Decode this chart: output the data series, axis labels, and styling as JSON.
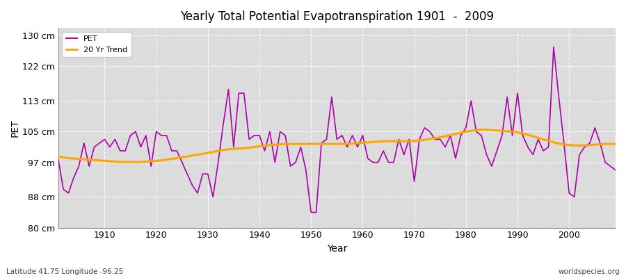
{
  "title": "Yearly Total Potential Evapotranspiration 1901  -  2009",
  "xlabel": "Year",
  "ylabel": "PET",
  "bottom_left": "Latitude 41.75 Longitude -96.25",
  "bottom_right": "worldspecies.org",
  "ylim": [
    80,
    132
  ],
  "yticks": [
    80,
    88,
    97,
    105,
    113,
    122,
    130
  ],
  "ytick_labels": [
    "80 cm",
    "88 cm",
    "97 cm",
    "105 cm",
    "113 cm",
    "122 cm",
    "130 cm"
  ],
  "xlim": [
    1901,
    2009
  ],
  "pet_color": "#AA00AA",
  "trend_color": "#FFA500",
  "bg_color": "#DCDCDC",
  "legend_bg": "#FFFFFF",
  "years": [
    1901,
    1902,
    1903,
    1904,
    1905,
    1906,
    1907,
    1908,
    1909,
    1910,
    1911,
    1912,
    1913,
    1914,
    1915,
    1916,
    1917,
    1918,
    1919,
    1920,
    1921,
    1922,
    1923,
    1924,
    1925,
    1926,
    1927,
    1928,
    1929,
    1930,
    1931,
    1932,
    1933,
    1934,
    1935,
    1936,
    1937,
    1938,
    1939,
    1940,
    1941,
    1942,
    1943,
    1944,
    1945,
    1946,
    1947,
    1948,
    1949,
    1950,
    1951,
    1952,
    1953,
    1954,
    1955,
    1956,
    1957,
    1958,
    1959,
    1960,
    1961,
    1962,
    1963,
    1964,
    1965,
    1966,
    1967,
    1968,
    1969,
    1970,
    1971,
    1972,
    1973,
    1974,
    1975,
    1976,
    1977,
    1978,
    1979,
    1980,
    1981,
    1982,
    1983,
    1984,
    1985,
    1986,
    1987,
    1988,
    1989,
    1990,
    1991,
    1992,
    1993,
    1994,
    1995,
    1996,
    1997,
    1998,
    1999,
    2000,
    2001,
    2002,
    2003,
    2004,
    2005,
    2006,
    2007,
    2008,
    2009
  ],
  "values": [
    98,
    90,
    89,
    93,
    96,
    102,
    96,
    101,
    102,
    103,
    101,
    103,
    100,
    100,
    104,
    105,
    101,
    104,
    96,
    105,
    104,
    104,
    100,
    100,
    97,
    94,
    91,
    89,
    94,
    94,
    88,
    97,
    107,
    116,
    101,
    115,
    115,
    103,
    104,
    104,
    100,
    105,
    97,
    105,
    104,
    96,
    97,
    101,
    95,
    84,
    84,
    102,
    103,
    114,
    103,
    104,
    101,
    104,
    101,
    104,
    98,
    97,
    97,
    100,
    97,
    97,
    103,
    99,
    103,
    92,
    103,
    106,
    105,
    103,
    103,
    101,
    104,
    98,
    104,
    106,
    113,
    105,
    104,
    99,
    96,
    100,
    104,
    114,
    104,
    115,
    104,
    101,
    99,
    103,
    100,
    101,
    127,
    114,
    102,
    89,
    88,
    99,
    101,
    102,
    106,
    102,
    97,
    96,
    95
  ],
  "trend": [
    98.5,
    98.3,
    98.1,
    98.0,
    97.9,
    97.8,
    97.7,
    97.6,
    97.5,
    97.4,
    97.3,
    97.2,
    97.1,
    97.1,
    97.1,
    97.1,
    97.1,
    97.2,
    97.3,
    97.4,
    97.5,
    97.7,
    97.9,
    98.1,
    98.3,
    98.5,
    98.8,
    99.0,
    99.2,
    99.5,
    99.7,
    100.0,
    100.2,
    100.4,
    100.5,
    100.6,
    100.7,
    100.8,
    101.0,
    101.2,
    101.3,
    101.5,
    101.6,
    101.7,
    101.8,
    101.8,
    101.8,
    101.8,
    101.8,
    101.8,
    101.8,
    101.8,
    101.8,
    101.8,
    101.8,
    101.8,
    101.8,
    101.9,
    102.0,
    102.1,
    102.2,
    102.3,
    102.4,
    102.5,
    102.5,
    102.5,
    102.5,
    102.5,
    102.5,
    102.6,
    102.7,
    102.9,
    103.1,
    103.3,
    103.5,
    103.8,
    104.1,
    104.4,
    104.7,
    105.0,
    105.2,
    105.4,
    105.5,
    105.5,
    105.4,
    105.3,
    105.2,
    105.1,
    105.0,
    104.8,
    104.5,
    104.2,
    103.8,
    103.4,
    103.0,
    102.6,
    102.2,
    101.9,
    101.7,
    101.5,
    101.4,
    101.4,
    101.4,
    101.5,
    101.6,
    101.7,
    101.8,
    101.8,
    101.8
  ]
}
